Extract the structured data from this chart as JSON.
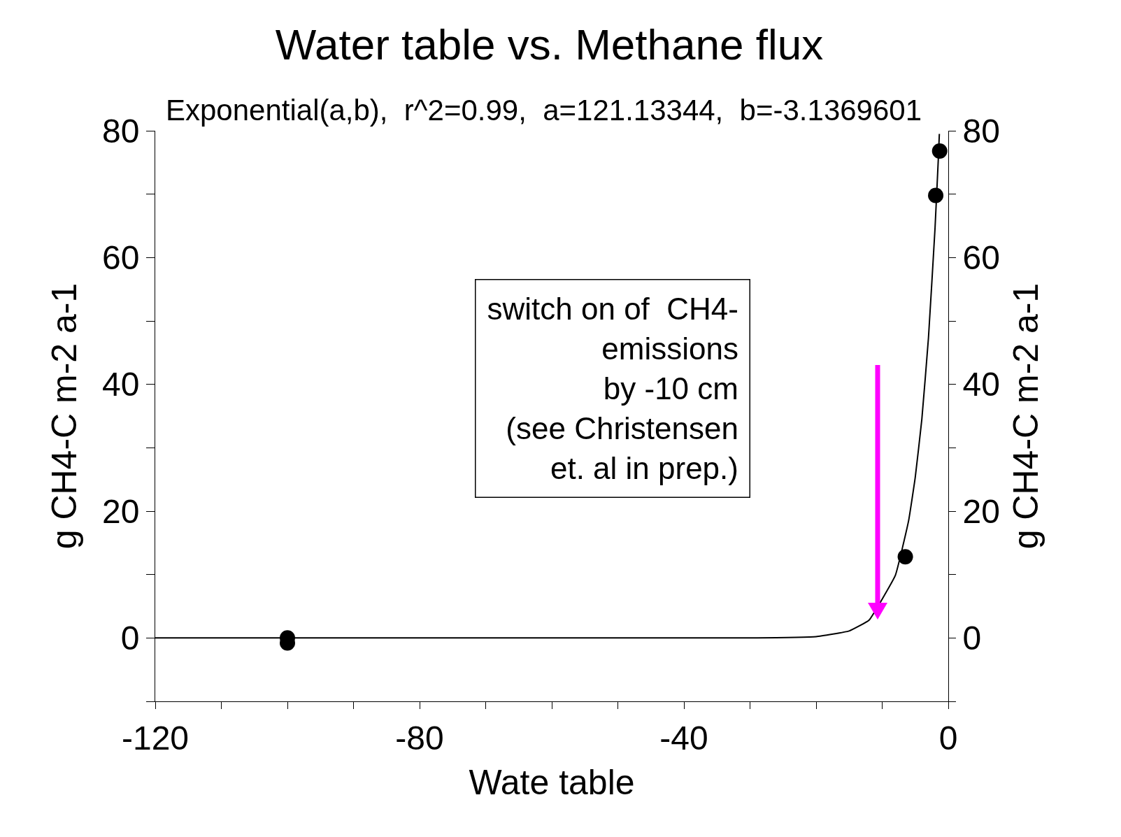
{
  "chart_data": {
    "type": "scatter",
    "title": "Water table vs. Methane flux",
    "subtitle": "Exponential(a,b),  r^2=0.99,  a=121.13344,  b=-3.1369601",
    "xlabel": "Wate table",
    "ylabel": "g CH4-C m-2 a-1",
    "y2label": "g CH4-C m-2 a-1",
    "series": [
      {
        "color": "#000000",
        "marker": "circle",
        "x": [
          -100,
          -100,
          -6.5,
          -1.9,
          -1.3
        ],
        "values": [
          0,
          -0.8,
          12.8,
          69.8,
          76.8
        ]
      },
      {
        "type": "line",
        "color": "#000000",
        "marker": "none",
        "line_style": "solid",
        "x": [
          -120,
          -30,
          -20,
          -15,
          -12,
          -8,
          -6,
          -5,
          -4,
          -3,
          -2,
          -1.5,
          -1.35
        ],
        "values": [
          0,
          0,
          0.2,
          1.1,
          2.8,
          9.9,
          18.5,
          25.3,
          34.5,
          47.3,
          64.7,
          75.7,
          79.5
        ]
      }
    ],
    "annotations": [
      "switch on of  CH4-\nemissions\nby -10 cm\n(see Christensen\net. al in prep.)"
    ],
    "xlim": [
      -120,
      0
    ],
    "xticks": [
      -120,
      {
        "value": -110,
        "label": null
      },
      {
        "value": -100,
        "label": null
      },
      {
        "value": -90,
        "label": null
      },
      -80,
      {
        "value": -70,
        "label": null
      },
      {
        "value": -60,
        "label": null
      },
      {
        "value": -50,
        "label": null
      },
      -40,
      {
        "value": -30,
        "label": null
      },
      {
        "value": -20,
        "label": null
      },
      {
        "value": -10,
        "label": null
      },
      0
    ],
    "ylim": [
      -10,
      80
    ],
    "yticks": [
      {
        "value": -10,
        "label": null
      },
      0,
      {
        "value": 10,
        "label": null
      },
      20,
      {
        "value": 30,
        "label": null
      },
      40,
      {
        "value": 50,
        "label": null
      },
      60,
      {
        "value": 70,
        "label": null
      },
      80
    ],
    "y2lim": [
      -10,
      80
    ],
    "y2ticks": [
      {
        "value": -10,
        "label": null
      },
      0,
      {
        "value": 10,
        "label": null
      },
      20,
      {
        "value": 30,
        "label": null
      },
      40,
      {
        "value": 50,
        "label": null
      },
      60,
      {
        "value": 70,
        "label": null
      },
      80
    ],
    "grid": false
  }
}
